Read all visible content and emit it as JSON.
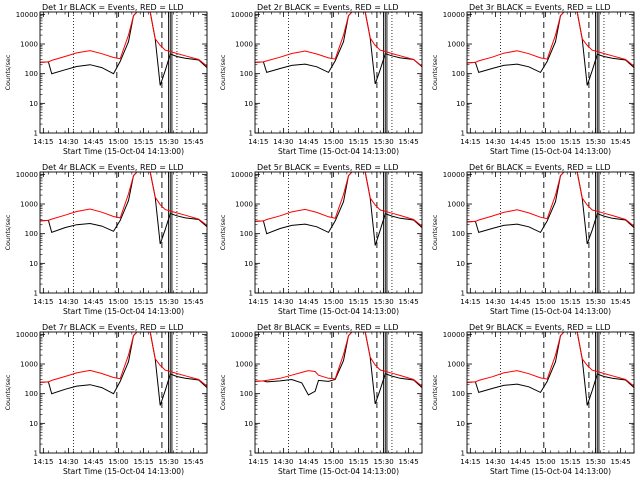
{
  "figure": {
    "background": "#ffffff",
    "axis_color": "#000000",
    "colors": {
      "events": "#000000",
      "lld": "#ff0000"
    },
    "xaxis": {
      "label": "Start Time (15-Oct-04 14:13:00)",
      "tick_labels": [
        "14:15",
        "14:30",
        "14:45",
        "15:00",
        "15:15",
        "15:30",
        "15:45"
      ],
      "tick_minutes": [
        2,
        17,
        32,
        47,
        62,
        77,
        92
      ],
      "range_minutes": [
        0,
        100
      ]
    },
    "yaxis": {
      "label": "Counts/sec",
      "scale": "log",
      "range": [
        1,
        12000
      ],
      "tick_labels": [
        "1",
        "10",
        "100",
        "1000",
        "10000"
      ],
      "tick_values": [
        1,
        10,
        100,
        1000,
        10000
      ]
    },
    "markers": {
      "dotted_minutes": [
        20,
        82
      ],
      "dashed_minutes": [
        46,
        73
      ],
      "solid_minutes": [
        77,
        78,
        79
      ]
    }
  },
  "chart_data": [
    {
      "type": "line",
      "title": "Det 1r BLACK = Events, RED = LLD",
      "x": [
        0,
        5,
        7,
        15,
        22,
        30,
        37,
        44,
        48,
        53,
        56,
        58,
        62,
        66,
        69,
        72,
        75,
        78,
        82,
        87,
        95,
        100
      ],
      "series": [
        {
          "name": "Events",
          "color": "#000000",
          "values": [
            240,
            250,
            100,
            135,
            175,
            200,
            160,
            100,
            260,
            1200,
            9000,
            12000,
            12000,
            12000,
            1500,
            40,
            130,
            460,
            380,
            330,
            290,
            160
          ]
        },
        {
          "name": "LLD",
          "color": "#ff0000",
          "values": [
            240,
            250,
            280,
            380,
            500,
            600,
            470,
            350,
            320,
            2000,
            9000,
            12000,
            12000,
            12000,
            1500,
            900,
            620,
            560,
            480,
            400,
            300,
            180
          ]
        }
      ]
    },
    {
      "type": "line",
      "title": "Det 2r BLACK = Events, RED = LLD",
      "x": [
        0,
        5,
        7,
        15,
        22,
        30,
        37,
        44,
        48,
        53,
        56,
        58,
        62,
        66,
        69,
        72,
        75,
        78,
        82,
        87,
        95,
        100
      ],
      "series": [
        {
          "name": "Events",
          "color": "#000000",
          "values": [
            240,
            250,
            110,
            150,
            190,
            210,
            170,
            110,
            270,
            1200,
            9000,
            12000,
            12000,
            12000,
            1600,
            45,
            140,
            470,
            400,
            340,
            300,
            170
          ]
        },
        {
          "name": "LLD",
          "color": "#ff0000",
          "values": [
            240,
            250,
            270,
            360,
            480,
            580,
            460,
            340,
            310,
            2000,
            9000,
            12000,
            12000,
            12000,
            1600,
            900,
            620,
            560,
            480,
            400,
            300,
            180
          ]
        }
      ]
    },
    {
      "type": "line",
      "title": "Det 3r BLACK = Events, RED = LLD",
      "x": [
        0,
        5,
        7,
        15,
        22,
        30,
        37,
        44,
        48,
        53,
        56,
        58,
        62,
        66,
        69,
        72,
        75,
        78,
        82,
        87,
        95,
        100
      ],
      "series": [
        {
          "name": "Events",
          "color": "#000000",
          "values": [
            230,
            240,
            110,
            150,
            190,
            210,
            170,
            110,
            260,
            1200,
            9000,
            12000,
            12000,
            12000,
            1500,
            40,
            130,
            450,
            380,
            330,
            290,
            160
          ]
        },
        {
          "name": "LLD",
          "color": "#ff0000",
          "values": [
            230,
            240,
            270,
            360,
            490,
            590,
            470,
            340,
            310,
            2000,
            9000,
            12000,
            12000,
            12000,
            1500,
            900,
            620,
            560,
            480,
            400,
            300,
            180
          ]
        }
      ]
    },
    {
      "type": "line",
      "title": "Det 4r BLACK = Events, RED = LLD",
      "x": [
        0,
        5,
        7,
        15,
        22,
        30,
        37,
        44,
        48,
        53,
        56,
        58,
        62,
        66,
        69,
        72,
        75,
        78,
        82,
        87,
        95,
        100
      ],
      "series": [
        {
          "name": "Events",
          "color": "#000000",
          "values": [
            270,
            280,
            110,
            160,
            200,
            220,
            180,
            120,
            280,
            1300,
            9000,
            12000,
            12000,
            12000,
            1700,
            45,
            140,
            480,
            400,
            340,
            300,
            170
          ]
        },
        {
          "name": "LLD",
          "color": "#ff0000",
          "values": [
            270,
            280,
            310,
            420,
            560,
            680,
            530,
            380,
            340,
            2200,
            9000,
            12000,
            12000,
            12000,
            1700,
            950,
            650,
            580,
            500,
            420,
            310,
            190
          ]
        }
      ]
    },
    {
      "type": "line",
      "title": "Det 5r BLACK = Events, RED = LLD",
      "x": [
        0,
        5,
        7,
        15,
        22,
        30,
        37,
        44,
        48,
        53,
        56,
        58,
        62,
        66,
        69,
        72,
        75,
        78,
        82,
        87,
        95,
        100
      ],
      "series": [
        {
          "name": "Events",
          "color": "#000000",
          "values": [
            260,
            270,
            100,
            150,
            190,
            210,
            170,
            110,
            270,
            1200,
            9000,
            12000,
            12000,
            12000,
            1600,
            40,
            135,
            470,
            390,
            330,
            290,
            160
          ]
        },
        {
          "name": "LLD",
          "color": "#ff0000",
          "values": [
            260,
            270,
            300,
            400,
            540,
            660,
            520,
            370,
            330,
            2100,
            9000,
            12000,
            12000,
            12000,
            1600,
            920,
            630,
            570,
            490,
            410,
            300,
            180
          ]
        }
      ]
    },
    {
      "type": "line",
      "title": "Det 6r BLACK = Events, RED = LLD",
      "x": [
        0,
        5,
        7,
        15,
        22,
        30,
        37,
        44,
        48,
        53,
        56,
        58,
        62,
        66,
        69,
        72,
        75,
        78,
        82,
        87,
        95,
        100
      ],
      "series": [
        {
          "name": "Events",
          "color": "#000000",
          "values": [
            250,
            260,
            110,
            150,
            190,
            210,
            170,
            110,
            270,
            1200,
            9000,
            12000,
            12000,
            12000,
            1600,
            45,
            135,
            470,
            390,
            330,
            290,
            160
          ]
        },
        {
          "name": "LLD",
          "color": "#ff0000",
          "values": [
            250,
            260,
            290,
            390,
            520,
            640,
            500,
            360,
            320,
            2000,
            9000,
            12000,
            12000,
            12000,
            1600,
            920,
            630,
            570,
            490,
            410,
            300,
            180
          ]
        }
      ]
    },
    {
      "type": "line",
      "title": "Det 7r BLACK = Events, RED = LLD",
      "x": [
        0,
        5,
        7,
        15,
        22,
        30,
        37,
        44,
        48,
        53,
        56,
        58,
        62,
        66,
        69,
        72,
        75,
        78,
        82,
        87,
        95,
        100
      ],
      "series": [
        {
          "name": "Events",
          "color": "#000000",
          "values": [
            240,
            250,
            100,
            140,
            180,
            200,
            160,
            100,
            260,
            1200,
            9000,
            12000,
            12000,
            12000,
            1500,
            40,
            130,
            460,
            380,
            330,
            290,
            160
          ]
        },
        {
          "name": "LLD",
          "color": "#ff0000",
          "values": [
            240,
            250,
            280,
            380,
            500,
            610,
            480,
            350,
            320,
            2000,
            9000,
            12000,
            12000,
            12000,
            1500,
            900,
            620,
            560,
            480,
            400,
            300,
            180
          ]
        }
      ]
    },
    {
      "type": "line",
      "title": "Det 8r BLACK = Events, RED = LLD",
      "x": [
        0,
        5,
        7,
        15,
        22,
        28,
        32,
        36,
        38,
        44,
        48,
        53,
        56,
        58,
        62,
        66,
        69,
        72,
        75,
        78,
        82,
        87,
        95,
        100
      ],
      "series": [
        {
          "name": "Events",
          "color": "#000000",
          "values": [
            260,
            270,
            250,
            270,
            300,
            230,
            90,
            120,
            280,
            260,
            300,
            1300,
            9000,
            12000,
            12000,
            12000,
            1700,
            45,
            140,
            470,
            390,
            330,
            290,
            160
          ]
        },
        {
          "name": "LLD",
          "color": "#ff0000",
          "values": [
            260,
            270,
            280,
            330,
            420,
            520,
            600,
            560,
            420,
            330,
            320,
            2100,
            9000,
            12000,
            12000,
            12000,
            1700,
            920,
            630,
            570,
            490,
            410,
            300,
            180
          ]
        }
      ]
    },
    {
      "type": "line",
      "title": "Det 9r BLACK = Events, RED = LLD",
      "x": [
        0,
        5,
        7,
        15,
        22,
        30,
        37,
        44,
        48,
        53,
        56,
        58,
        62,
        66,
        69,
        72,
        75,
        78,
        82,
        87,
        95,
        100
      ],
      "series": [
        {
          "name": "Events",
          "color": "#000000",
          "values": [
            240,
            250,
            110,
            150,
            190,
            210,
            170,
            110,
            260,
            1200,
            9000,
            12000,
            12000,
            12000,
            1500,
            40,
            130,
            460,
            380,
            330,
            290,
            160
          ]
        },
        {
          "name": "LLD",
          "color": "#ff0000",
          "values": [
            240,
            250,
            280,
            370,
            500,
            600,
            470,
            340,
            310,
            2000,
            9000,
            12000,
            12000,
            12000,
            1500,
            900,
            620,
            560,
            480,
            400,
            300,
            180
          ]
        }
      ]
    }
  ]
}
